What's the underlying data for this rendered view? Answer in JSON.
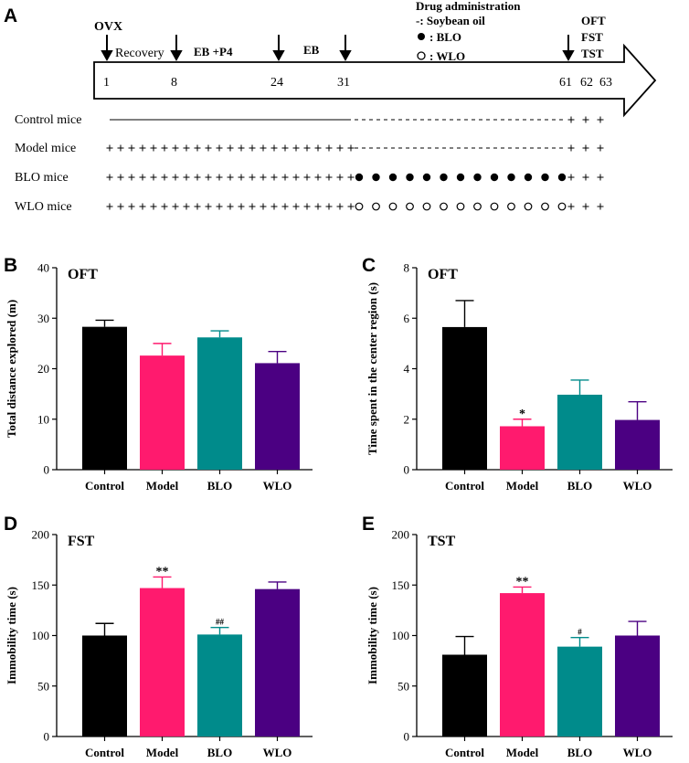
{
  "panels": {
    "A": "A",
    "B": "B",
    "C": "C",
    "D": "D",
    "E": "E"
  },
  "timeline": {
    "phase_labels": {
      "ovx": "OVX",
      "recovery": "Recovery",
      "ebp4": "EB +P4",
      "eb": "EB",
      "drug_title": "Drug administration",
      "drug_soybean": "-: Soybean oil",
      "drug_blo": ": BLO",
      "drug_wlo": ": WLO",
      "tests": [
        "OFT",
        "FST",
        "TST"
      ]
    },
    "day_numbers": [
      "1",
      "8",
      "24",
      "31",
      "61",
      "62",
      "63"
    ],
    "groups": [
      "Control mice",
      "Model mice",
      "BLO mice",
      "WLO mice"
    ]
  },
  "colors": {
    "Control": "#000000",
    "Model": "#ff1a6e",
    "BLO": "#008b8b",
    "WLO": "#4b0082"
  },
  "chart_data": [
    {
      "id": "B",
      "type": "bar",
      "title": "OFT",
      "ylabel": "Total  distance explored  (m)",
      "xlabel": "",
      "categories": [
        "Control",
        "Model",
        "BLO",
        "WLO"
      ],
      "values": [
        28.3,
        22.6,
        26.2,
        21.1
      ],
      "errors": [
        1.3,
        2.4,
        1.3,
        2.3
      ],
      "annotations": [
        "",
        "",
        "",
        ""
      ],
      "ylim": [
        0,
        40
      ],
      "yticks": [
        0,
        10,
        20,
        30,
        40
      ]
    },
    {
      "id": "C",
      "type": "bar",
      "title": "OFT",
      "ylabel": "Time spent in the center region  (s)",
      "xlabel": "",
      "categories": [
        "Control",
        "Model",
        "BLO",
        "WLO"
      ],
      "values": [
        5.65,
        1.72,
        2.97,
        1.97
      ],
      "errors": [
        1.05,
        0.28,
        0.58,
        0.72
      ],
      "annotations": [
        "",
        "*",
        "",
        ""
      ],
      "ylim": [
        0,
        8
      ],
      "yticks": [
        0,
        2,
        4,
        6,
        8
      ]
    },
    {
      "id": "D",
      "type": "bar",
      "title": "FST",
      "ylabel": "Immobility time (s)",
      "xlabel": "",
      "categories": [
        "Control",
        "Model",
        "BLO",
        "WLO"
      ],
      "values": [
        100,
        147,
        101,
        146
      ],
      "errors": [
        12,
        11,
        7,
        7
      ],
      "annotations": [
        "",
        "**",
        "##",
        ""
      ],
      "ylim": [
        0,
        200
      ],
      "yticks": [
        0,
        50,
        100,
        150,
        200
      ]
    },
    {
      "id": "E",
      "type": "bar",
      "title": "TST",
      "ylabel": "Immobility time (s)",
      "xlabel": "",
      "categories": [
        "Control",
        "Model",
        "BLO",
        "WLO"
      ],
      "values": [
        81,
        142,
        89,
        100
      ],
      "errors": [
        18,
        6,
        9,
        14
      ],
      "annotations": [
        "",
        "**",
        "#",
        ""
      ],
      "ylim": [
        0,
        200
      ],
      "yticks": [
        0,
        50,
        100,
        150,
        200
      ]
    }
  ]
}
